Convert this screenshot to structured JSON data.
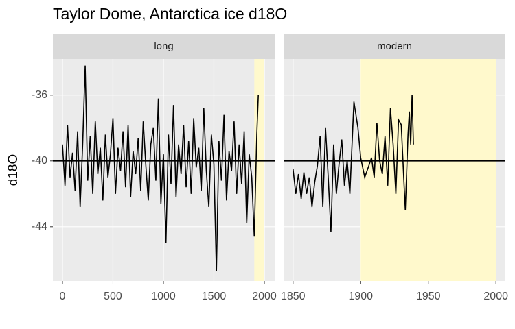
{
  "chart_data": [
    {
      "type": "line",
      "title": "Taylor Dome, Antarctica ice d18O",
      "y_label": "d18O",
      "facet": "long",
      "color": "#000000",
      "highlight": [
        1900,
        2000
      ],
      "highlight_color": "#fff9cc",
      "reference_line": -40,
      "xlim": [
        -95,
        2102
      ],
      "xticks": [
        0,
        500,
        1000,
        1500,
        2000
      ],
      "ylim": [
        -47.3,
        -33.8
      ],
      "yticks": [
        -36,
        -40,
        -44
      ],
      "grid": true,
      "x": [
        0,
        25,
        50,
        75,
        100,
        125,
        150,
        175,
        200,
        225,
        250,
        275,
        300,
        325,
        350,
        375,
        400,
        425,
        450,
        475,
        500,
        525,
        550,
        575,
        600,
        625,
        650,
        675,
        700,
        725,
        750,
        775,
        800,
        825,
        850,
        875,
        900,
        925,
        950,
        975,
        1000,
        1025,
        1050,
        1075,
        1100,
        1125,
        1150,
        1175,
        1200,
        1225,
        1250,
        1275,
        1300,
        1325,
        1350,
        1375,
        1400,
        1425,
        1450,
        1475,
        1500,
        1525,
        1550,
        1575,
        1600,
        1625,
        1650,
        1675,
        1700,
        1725,
        1750,
        1775,
        1800,
        1825,
        1850,
        1875,
        1900,
        1925,
        1940
      ],
      "values": [
        -39,
        -41.5,
        -37.8,
        -41,
        -39.5,
        -41.8,
        -38.2,
        -42.8,
        -39,
        -34.2,
        -41.2,
        -38.5,
        -42,
        -37.6,
        -40.8,
        -39.2,
        -42.4,
        -38.4,
        -41,
        -39.6,
        -37.4,
        -42,
        -39.2,
        -40.6,
        -38.2,
        -41.6,
        -37.8,
        -42.2,
        -39.4,
        -40.8,
        -38.6,
        -41.8,
        -37.6,
        -40.2,
        -42.4,
        -39,
        -38,
        -41.2,
        -36.2,
        -42.6,
        -39.6,
        -45,
        -38.4,
        -41.4,
        -36.6,
        -42.2,
        -39,
        -40.8,
        -37.8,
        -41.6,
        -38.8,
        -42,
        -37.4,
        -40.4,
        -39.2,
        -41.8,
        -36.8,
        -40.6,
        -42.8,
        -38.4,
        -40.2,
        -46.7,
        -38.8,
        -41.2,
        -37.2,
        -42.4,
        -39.4,
        -40.6,
        -37.6,
        -42,
        -39,
        -41.4,
        -38.2,
        -43.8,
        -39.6,
        -41,
        -44.6,
        -38.4,
        -36
      ]
    },
    {
      "type": "line",
      "facet": "modern",
      "color": "#000000",
      "highlight": [
        1900,
        2000
      ],
      "highlight_color": "#fff9cc",
      "reference_line": -40,
      "xlim": [
        1843,
        2007
      ],
      "xticks": [
        1850,
        1900,
        1950,
        2000
      ],
      "ylim": [
        -47.3,
        -33.8
      ],
      "yticks": [
        -36,
        -40,
        -44
      ],
      "grid": true,
      "x": [
        1850,
        1852,
        1854,
        1856,
        1858,
        1860,
        1862,
        1864,
        1866,
        1868,
        1870,
        1872,
        1874,
        1876,
        1878,
        1880,
        1882,
        1884,
        1886,
        1888,
        1890,
        1892,
        1895,
        1898,
        1900,
        1903,
        1906,
        1908,
        1910,
        1912,
        1914,
        1916,
        1918,
        1920,
        1922,
        1924,
        1926,
        1928,
        1930,
        1932,
        1933,
        1935,
        1936,
        1937,
        1938,
        1939
      ],
      "values": [
        -40.5,
        -42,
        -40.8,
        -42.3,
        -40.7,
        -42,
        -41,
        -42.8,
        -41.3,
        -40.3,
        -38.5,
        -42.8,
        -38,
        -41,
        -44.3,
        -39,
        -42,
        -40.2,
        -38.7,
        -41.5,
        -40,
        -42,
        -36.4,
        -38,
        -39.8,
        -41,
        -40.3,
        -39.8,
        -41,
        -37.7,
        -40,
        -40.8,
        -38.5,
        -41.5,
        -36.8,
        -39,
        -42,
        -37.5,
        -37.8,
        -41.3,
        -43,
        -38.4,
        -37,
        -39,
        -36,
        -39
      ]
    }
  ]
}
